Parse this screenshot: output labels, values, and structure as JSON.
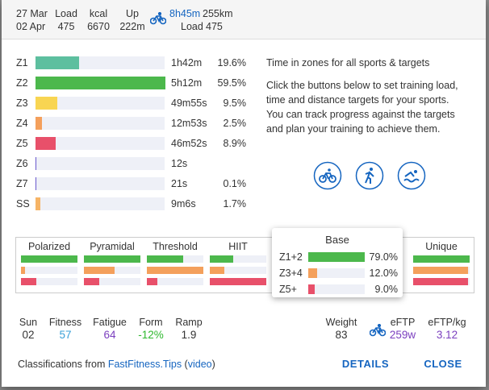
{
  "header": {
    "date_from": "27 Mar",
    "date_to": "02 Apr",
    "stats": [
      {
        "label": "Load",
        "value": "475"
      },
      {
        "label": "kcal",
        "value": "6670"
      },
      {
        "label": "Up",
        "value": "222m"
      }
    ],
    "activity": {
      "duration": "8h45m",
      "distance": "255km",
      "load_label": "Load",
      "load": "475"
    }
  },
  "zones": {
    "rows": [
      {
        "zone": "Z1",
        "time": "1h42m",
        "percent": 19.6,
        "percent_label": "19.6%",
        "color": "#5dbf9f"
      },
      {
        "zone": "Z2",
        "time": "5h12m",
        "percent": 59.5,
        "percent_label": "59.5%",
        "color": "#4cb84c"
      },
      {
        "zone": "Z3",
        "time": "49m55s",
        "percent": 9.5,
        "percent_label": "9.5%",
        "color": "#f8d552"
      },
      {
        "zone": "Z4",
        "time": "12m53s",
        "percent": 2.5,
        "percent_label": "2.5%",
        "color": "#f4a05c"
      },
      {
        "zone": "Z5",
        "time": "46m52s",
        "percent": 8.9,
        "percent_label": "8.9%",
        "color": "#e8506a"
      },
      {
        "zone": "Z6",
        "time": "12s",
        "percent": 0.04,
        "color": "#6a5acd"
      },
      {
        "zone": "Z7",
        "time": "21s",
        "percent": 0.1,
        "percent_label": "0.1%",
        "color": "#6a5acd"
      },
      {
        "zone": "SS",
        "time": "9m6s",
        "percent": 1.7,
        "percent_label": "1.7%",
        "color": "#f6b466"
      }
    ]
  },
  "info": {
    "title": "Time in zones for all sports & targets",
    "text": "Click the buttons below to set training load, time and distance targets for your sports. You can track progress against the targets and plan your training to achieve them."
  },
  "classifications": {
    "bar_colors": [
      "#4cb84c",
      "#f4a05c",
      "#e8506a"
    ],
    "cards": [
      {
        "name": "Polarized",
        "values": [
          75,
          5,
          20
        ]
      },
      {
        "name": "Pyramidal",
        "values": [
          55,
          30,
          15
        ]
      },
      {
        "name": "Threshold",
        "values": [
          35,
          55,
          10
        ]
      },
      {
        "name": "HIIT",
        "values": [
          25,
          15,
          60
        ]
      },
      {
        "name": "Unique",
        "values": [
          34,
          33,
          33
        ]
      }
    ],
    "popup": {
      "name": "Base",
      "rows": [
        {
          "label": "Z1+2",
          "value": 79.0,
          "value_label": "79.0%"
        },
        {
          "label": "Z3+4",
          "value": 12.0,
          "value_label": "12.0%"
        },
        {
          "label": "Z5+",
          "value": 9.0,
          "value_label": "9.0%"
        }
      ]
    }
  },
  "fitness": {
    "items": [
      {
        "label": "Sun",
        "value": "02"
      },
      {
        "label": "Fitness",
        "value": "57",
        "color": "#3aa0d8"
      },
      {
        "label": "Fatigue",
        "value": "64",
        "color": "#7b3fbf"
      },
      {
        "label": "Form",
        "value": "-12%",
        "color": "#2eb82e"
      },
      {
        "label": "Ramp",
        "value": "1.9"
      }
    ]
  },
  "performance": {
    "items": [
      {
        "label": "Weight",
        "value": "83"
      },
      {
        "label": "eFTP",
        "value": "259w",
        "color": "#7b3fbf"
      },
      {
        "label": "eFTP/kg",
        "value": "3.12",
        "color": "#7b3fbf"
      }
    ]
  },
  "footer": {
    "source": [
      "Classifications from ",
      "FastFitness.Tips",
      " (",
      "video",
      ")"
    ],
    "buttons": [
      "DETAILS",
      "CLOSE"
    ]
  }
}
